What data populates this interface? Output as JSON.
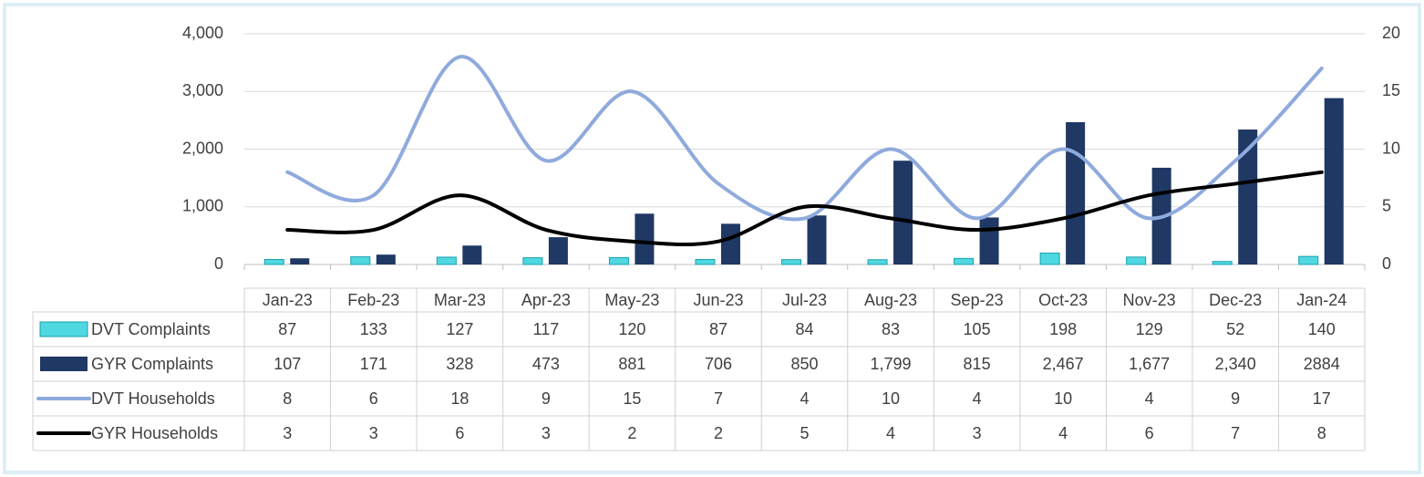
{
  "chart_data": {
    "type": "bar-line-combo",
    "categories": [
      "Jan-23",
      "Feb-23",
      "Mar-23",
      "Apr-23",
      "May-23",
      "Jun-23",
      "Jul-23",
      "Aug-23",
      "Sep-23",
      "Oct-23",
      "Nov-23",
      "Dec-23",
      "Jan-24"
    ],
    "series": [
      {
        "name": "DVT Complaints",
        "type": "bar",
        "color": "#4fd8e0",
        "values": [
          87,
          133,
          127,
          117,
          120,
          87,
          84,
          83,
          105,
          198,
          129,
          52,
          140
        ]
      },
      {
        "name": "GYR Complaints",
        "type": "bar",
        "color": "#1f3864",
        "values": [
          107,
          171,
          328,
          473,
          881,
          706,
          850,
          1799,
          815,
          2467,
          1677,
          2340,
          2884
        ],
        "value_labels": [
          "107",
          "171",
          "328",
          "473",
          "881",
          "706",
          "850",
          "1,799",
          "815",
          "2,467",
          "1,677",
          "2,340",
          "2884"
        ]
      },
      {
        "name": "DVT Households",
        "type": "line",
        "axis": "y2",
        "color": "#8faadc",
        "values": [
          8,
          6,
          18,
          9,
          15,
          7,
          4,
          10,
          4,
          10,
          4,
          9,
          17
        ]
      },
      {
        "name": "GYR Households",
        "type": "line",
        "axis": "y2",
        "color": "#000000",
        "values": [
          3,
          3,
          6,
          3,
          2,
          2,
          5,
          4,
          3,
          4,
          6,
          7,
          8
        ]
      }
    ],
    "ylim": [
      0,
      4000
    ],
    "yticks": [
      0,
      {
        "value": 1000,
        "label": "1,000"
      },
      {
        "value": 2000,
        "label": "2,000"
      },
      {
        "value": 3000,
        "label": "3,000"
      },
      {
        "value": 4000,
        "label": "4,000"
      }
    ],
    "y2lim": [
      0,
      20
    ],
    "y2ticks": [
      0,
      5,
      10,
      15,
      20
    ],
    "grid": true
  }
}
